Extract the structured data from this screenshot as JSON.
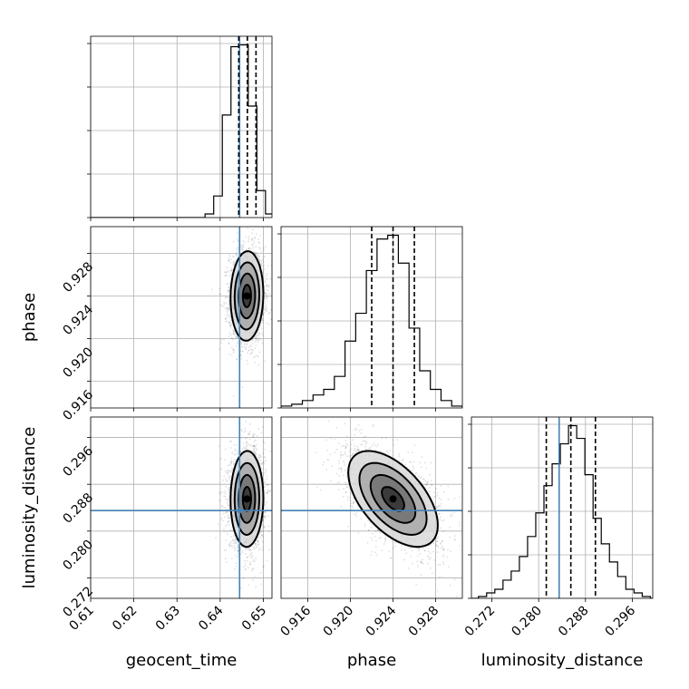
{
  "chart_data": {
    "type": "corner",
    "parameters": [
      "geocent_time",
      "phase",
      "luminosity_distance"
    ],
    "truths": {
      "geocent_time": 0.6445,
      "phase": null,
      "luminosity_distance": 0.2835
    },
    "ranges": {
      "geocent_time": [
        0.61,
        0.652
      ],
      "phase": [
        0.9135,
        0.9305
      ],
      "luminosity_distance": [
        0.2685,
        0.2995
      ]
    },
    "ticks": {
      "geocent_time": [
        "0.61",
        "0.62",
        "0.63",
        "0.64",
        "0.65"
      ],
      "phase": [
        "0.916",
        "0.920",
        "0.924",
        "0.928"
      ],
      "luminosity_distance": [
        "0.272",
        "0.280",
        "0.288",
        "0.296"
      ]
    },
    "quantiles": {
      "geocent_time": [
        0.6443,
        0.6463,
        0.6483
      ],
      "phase": [
        0.922,
        0.924,
        0.926
      ],
      "luminosity_distance": [
        0.2813,
        0.2855,
        0.2897
      ]
    },
    "histograms": {
      "geocent_time": {
        "edges": [
          0.6365,
          0.6385,
          0.6405,
          0.6425,
          0.6445,
          0.6465,
          0.6485,
          0.6505,
          0.6525
        ],
        "counts": [
          0.02,
          0.12,
          0.57,
          0.95,
          0.96,
          0.62,
          0.15,
          0.02
        ]
      },
      "phase": {
        "edges": [
          0.9135,
          0.9145,
          0.9155,
          0.9165,
          0.9175,
          0.9185,
          0.9195,
          0.9205,
          0.9215,
          0.9225,
          0.9235,
          0.9245,
          0.9255,
          0.9265,
          0.9275,
          0.9285,
          0.9295,
          0.9305
        ],
        "counts": [
          0.01,
          0.02,
          0.04,
          0.07,
          0.1,
          0.17,
          0.36,
          0.51,
          0.74,
          0.91,
          0.93,
          0.78,
          0.43,
          0.2,
          0.1,
          0.04,
          0.01
        ]
      },
      "luminosity_distance": {
        "edges": [
          0.2697,
          0.2711,
          0.2725,
          0.2739,
          0.2753,
          0.2767,
          0.2781,
          0.2795,
          0.2809,
          0.2823,
          0.2837,
          0.2851,
          0.2865,
          0.2879,
          0.2893,
          0.2907,
          0.2921,
          0.2935,
          0.2949,
          0.2963,
          0.2977,
          0.2991
        ],
        "counts": [
          0.01,
          0.03,
          0.05,
          0.1,
          0.15,
          0.23,
          0.34,
          0.47,
          0.62,
          0.74,
          0.85,
          0.95,
          0.88,
          0.68,
          0.44,
          0.3,
          0.2,
          0.12,
          0.05,
          0.03,
          0.01
        ]
      }
    },
    "pairs": [
      {
        "x": "geocent_time",
        "y": "phase",
        "center": [
          0.6462,
          0.924
        ],
        "sigma": [
          0.0019,
          0.0021
        ],
        "rho": 0.05
      },
      {
        "x": "geocent_time",
        "y": "luminosity_distance",
        "center": [
          0.6462,
          0.2855
        ],
        "sigma": [
          0.0019,
          0.0041
        ],
        "rho": 0.02
      },
      {
        "x": "phase",
        "y": "luminosity_distance",
        "center": [
          0.924,
          0.2855
        ],
        "sigma": [
          0.0021,
          0.0041
        ],
        "rho": -0.55
      }
    ]
  }
}
